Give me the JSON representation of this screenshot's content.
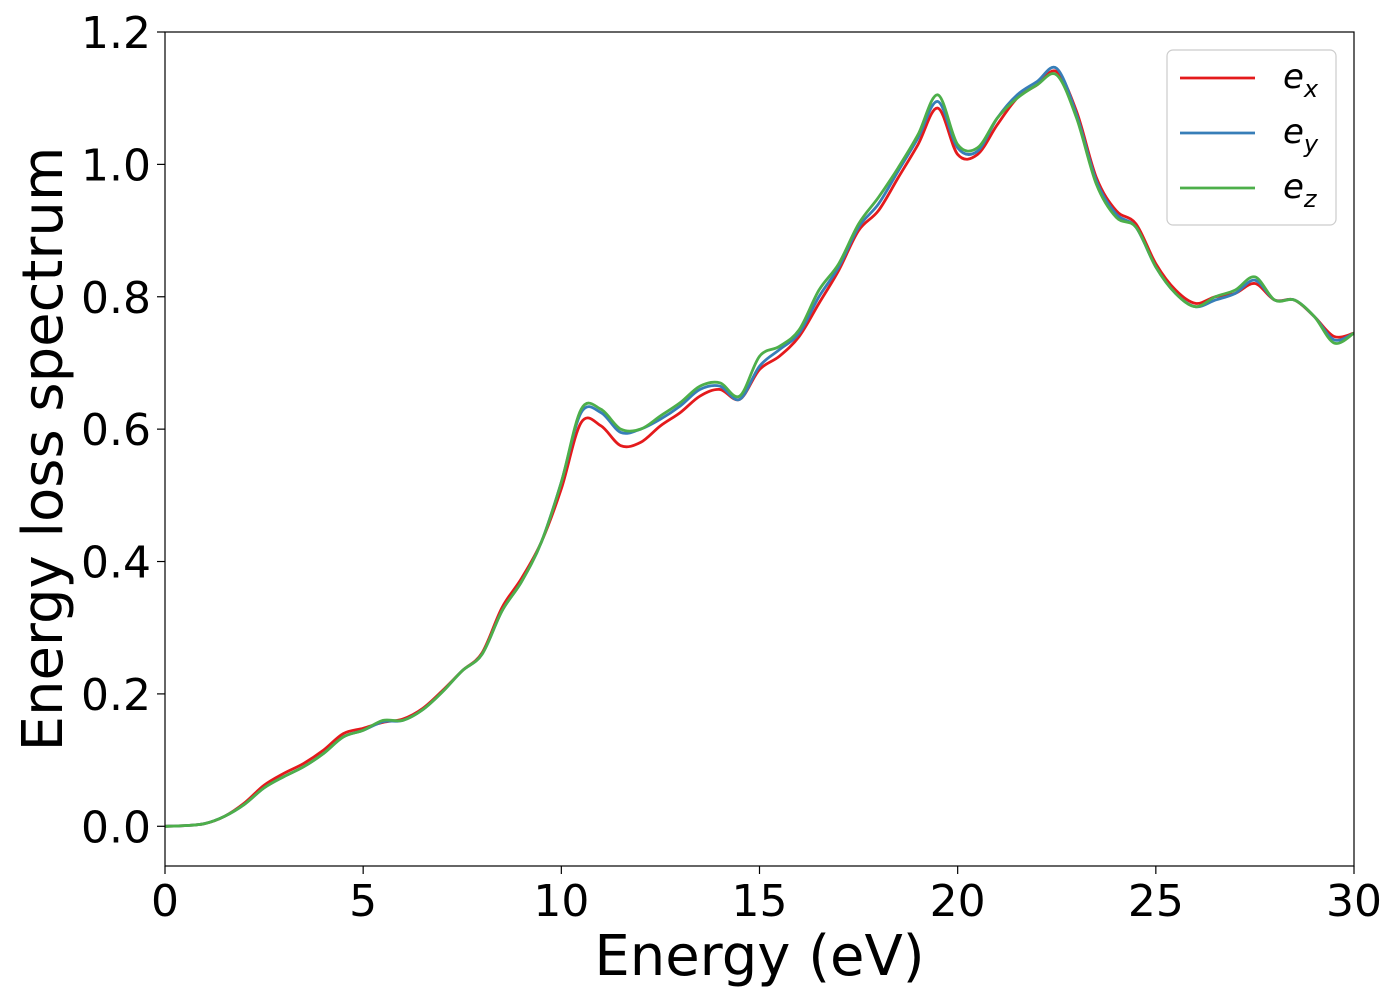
{
  "chart_data": {
    "type": "line",
    "xlabel": "Energy (eV)",
    "ylabel": "Energy loss spectrum",
    "xlim": [
      0,
      30
    ],
    "ylim": [
      -0.06,
      1.2
    ],
    "xticks": [
      0,
      5,
      10,
      15,
      20,
      25,
      30
    ],
    "xtick_labels": [
      "0",
      "5",
      "10",
      "15",
      "20",
      "25",
      "30"
    ],
    "yticks": [
      0.0,
      0.2,
      0.4,
      0.6,
      0.8,
      1.0,
      1.2
    ],
    "ytick_labels": [
      "0.0",
      "0.2",
      "0.4",
      "0.6",
      "0.8",
      "1.0",
      "1.2"
    ],
    "grid": false,
    "legend_position": "top-right",
    "x": [
      0,
      0.5,
      1,
      1.5,
      2,
      2.5,
      3,
      3.5,
      4,
      4.5,
      5,
      5.5,
      6,
      6.5,
      7,
      7.5,
      8,
      8.5,
      9,
      9.5,
      10,
      10.5,
      11,
      11.5,
      12,
      12.5,
      13,
      13.5,
      14,
      14.5,
      15,
      15.5,
      16,
      16.5,
      17,
      17.5,
      18,
      18.5,
      19,
      19.5,
      20,
      20.5,
      21,
      21.5,
      22,
      22.5,
      23,
      23.5,
      24,
      24.5,
      25,
      25.5,
      26,
      26.5,
      27,
      27.5,
      28,
      28.5,
      29,
      29.5,
      30
    ],
    "series": [
      {
        "name_base": "e",
        "name_sub": "x",
        "color": "#e41a1c",
        "values": [
          0,
          0.001,
          0.004,
          0.015,
          0.035,
          0.062,
          0.08,
          0.095,
          0.115,
          0.14,
          0.148,
          0.157,
          0.162,
          0.178,
          0.205,
          0.235,
          0.262,
          0.33,
          0.375,
          0.43,
          0.51,
          0.61,
          0.605,
          0.575,
          0.58,
          0.605,
          0.625,
          0.65,
          0.66,
          0.645,
          0.69,
          0.71,
          0.74,
          0.79,
          0.84,
          0.9,
          0.93,
          0.98,
          1.03,
          1.085,
          1.015,
          1.015,
          1.06,
          1.1,
          1.12,
          1.14,
          1.08,
          0.98,
          0.93,
          0.91,
          0.85,
          0.81,
          0.79,
          0.8,
          0.805,
          0.82,
          0.795,
          0.795,
          0.77,
          0.74,
          0.745
        ]
      },
      {
        "name_base": "e",
        "name_sub": "y",
        "color": "#377eb8",
        "values": [
          0,
          0.001,
          0.004,
          0.015,
          0.033,
          0.058,
          0.075,
          0.09,
          0.11,
          0.135,
          0.145,
          0.158,
          0.16,
          0.176,
          0.203,
          0.235,
          0.26,
          0.325,
          0.37,
          0.43,
          0.52,
          0.625,
          0.625,
          0.595,
          0.6,
          0.615,
          0.635,
          0.66,
          0.665,
          0.645,
          0.695,
          0.72,
          0.745,
          0.8,
          0.845,
          0.905,
          0.94,
          0.99,
          1.04,
          1.095,
          1.025,
          1.02,
          1.07,
          1.105,
          1.125,
          1.145,
          1.075,
          0.975,
          0.925,
          0.905,
          0.845,
          0.805,
          0.785,
          0.795,
          0.805,
          0.825,
          0.795,
          0.795,
          0.77,
          0.735,
          0.745
        ]
      },
      {
        "name_base": "e",
        "name_sub": "z",
        "color": "#4daf4a",
        "values": [
          0,
          0.001,
          0.004,
          0.015,
          0.033,
          0.058,
          0.075,
          0.09,
          0.11,
          0.135,
          0.145,
          0.16,
          0.16,
          0.176,
          0.203,
          0.235,
          0.26,
          0.325,
          0.37,
          0.43,
          0.52,
          0.63,
          0.63,
          0.6,
          0.6,
          0.62,
          0.64,
          0.665,
          0.67,
          0.65,
          0.71,
          0.725,
          0.75,
          0.81,
          0.85,
          0.91,
          0.95,
          0.995,
          1.045,
          1.105,
          1.03,
          1.025,
          1.07,
          1.1,
          1.12,
          1.135,
          1.07,
          0.97,
          0.92,
          0.905,
          0.845,
          0.805,
          0.785,
          0.8,
          0.81,
          0.83,
          0.795,
          0.795,
          0.77,
          0.73,
          0.745
        ]
      }
    ]
  }
}
